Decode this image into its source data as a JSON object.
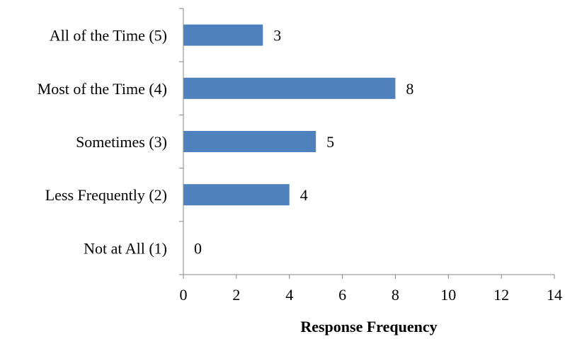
{
  "chart_data": {
    "type": "bar",
    "orientation": "horizontal",
    "categories": [
      "Not at All (1)",
      "Less Frequently (2)",
      "Sometimes (3)",
      "Most of the Time (4)",
      "All of the Time (5)"
    ],
    "values": [
      0,
      4,
      5,
      8,
      3
    ],
    "data_labels": [
      "0",
      "4",
      "5",
      "8",
      "3"
    ],
    "xlabel": "Response Frequency",
    "ylabel": "",
    "xlim": [
      0,
      14
    ],
    "xticks": [
      0,
      2,
      4,
      6,
      8,
      10,
      12,
      14
    ],
    "grid": false,
    "legend": "none",
    "bar_color": "#4f81bd"
  }
}
